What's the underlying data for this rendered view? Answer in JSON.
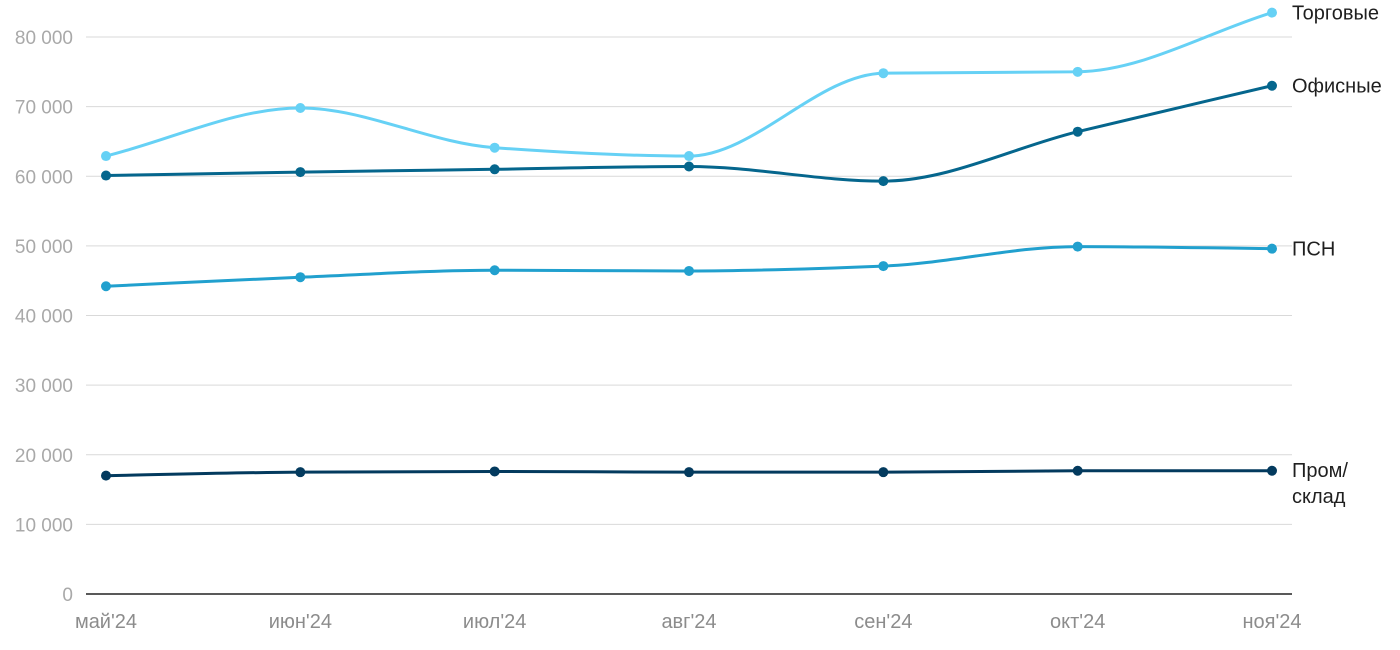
{
  "chart_data": {
    "type": "line",
    "x": [
      "май'24",
      "июн'24",
      "июл'24",
      "авг'24",
      "сен'24",
      "окт'24",
      "ноя'24"
    ],
    "ylim": [
      0,
      80000
    ],
    "ytick_labels": [
      "0",
      "10 000",
      "20 000",
      "30 000",
      "40 000",
      "50 000",
      "60 000",
      "70 000",
      "80 000"
    ],
    "grid": true,
    "legend": "labels at line ends, right",
    "series": [
      {
        "name": "Торговые",
        "color": "#66d1f5",
        "values": [
          62900,
          69800,
          64100,
          62900,
          74800,
          75000,
          83500
        ]
      },
      {
        "name": "Офисные",
        "color": "#05668d",
        "values": [
          60100,
          60600,
          61000,
          61400,
          59300,
          66400,
          73000
        ]
      },
      {
        "name": "ПСН",
        "color": "#21a0ce",
        "values": [
          44200,
          45500,
          46500,
          46400,
          47100,
          49900,
          49600
        ]
      },
      {
        "name": "Пром/\nсклад",
        "color": "#033a5e",
        "values": [
          17000,
          17500,
          17600,
          17500,
          17500,
          17700,
          17700
        ]
      }
    ]
  }
}
